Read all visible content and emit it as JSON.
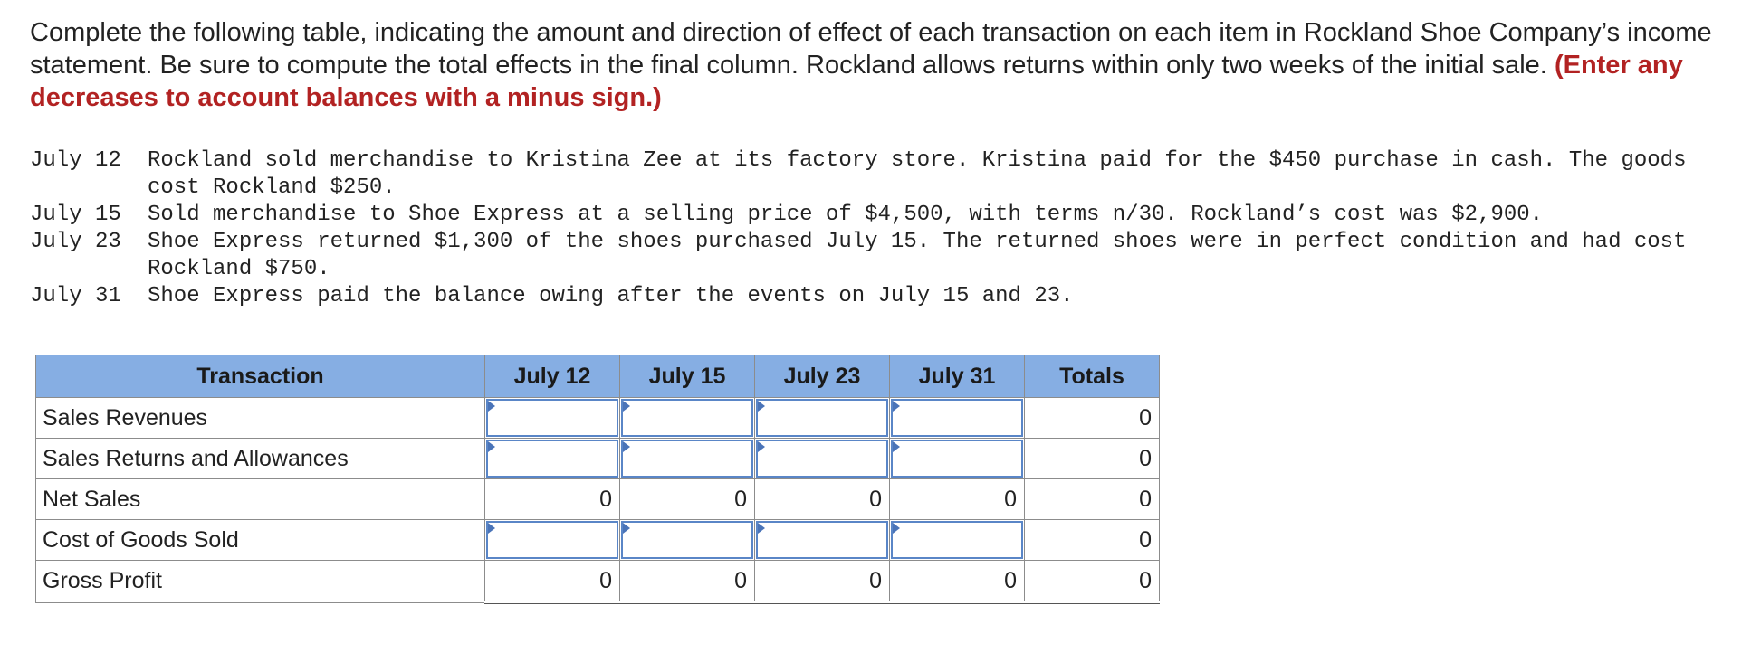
{
  "instructions": {
    "text": "Complete the following table, indicating the amount and direction of effect of each transaction on each item in Rockland Shoe Company’s income statement. Be sure to compute the total effects in the final column. Rockland allows returns within only two weeks of the initial sale.",
    "emphasis": "(Enter any decreases to account balances with a minus sign.)"
  },
  "events": [
    {
      "date": "July 12",
      "description": "Rockland sold merchandise to Kristina Zee at its factory store. Kristina paid for the $450 purchase in cash. The goods cost Rockland $250."
    },
    {
      "date": "July 15",
      "description": "Sold merchandise to Shoe Express at a selling price of $4,500, with terms n/30. Rockland’s cost was $2,900."
    },
    {
      "date": "July 23",
      "description": "Shoe Express returned $1,300 of the shoes purchased July 15. The returned shoes were in perfect condition and had cost Rockland $750."
    },
    {
      "date": "July 31",
      "description": "Shoe Express paid the balance owing after the events on July 15 and 23."
    }
  ],
  "table": {
    "headers": [
      "Transaction",
      "July 12",
      "July 15",
      "July 23",
      "July 31",
      "Totals"
    ],
    "rows": [
      {
        "label": "Sales Revenues",
        "values": [
          "",
          "",
          "",
          ""
        ],
        "total": "0"
      },
      {
        "label": "Sales Returns and Allowances",
        "values": [
          "",
          "",
          "",
          ""
        ],
        "total": "0"
      },
      {
        "label": "Net Sales",
        "values": [
          "0",
          "0",
          "0",
          "0"
        ],
        "total": "0"
      },
      {
        "label": "Cost of Goods Sold",
        "values": [
          "",
          "",
          "",
          ""
        ],
        "total": "0"
      },
      {
        "label": "Gross Profit",
        "values": [
          "0",
          "0",
          "0",
          "0"
        ],
        "total": "0"
      }
    ]
  },
  "colors": {
    "header_bg": "#86aee3",
    "input_border": "#5a86c7",
    "emphasis_text": "#b22222"
  }
}
